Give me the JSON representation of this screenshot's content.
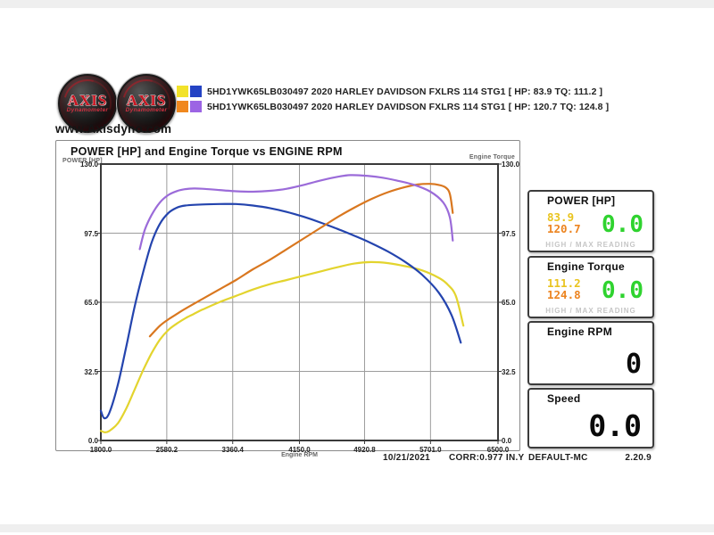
{
  "header": {
    "logo": {
      "brand": "AXIS",
      "sub": "Dynamometer"
    },
    "website": "www.Axisdyno.com",
    "legend": [
      {
        "swatches": [
          "#f2e22a",
          "#2443c4"
        ],
        "label": "5HD1YWK65LB030497 2020 HARLEY DAVIDSON FXLRS 114 STG1 [ HP: 83.9 TQ: 111.2 ]"
      },
      {
        "swatches": [
          "#f0881e",
          "#9c64e4"
        ],
        "label": "5HD1YWK65LB030497 2020 HARLEY DAVIDSON FXLRS 114 STG1 [ HP: 120.7 TQ: 124.8 ]"
      }
    ]
  },
  "chart_data": {
    "type": "line",
    "title": "POWER [HP] and Engine Torque vs ENGINE RPM",
    "xlabel": "Engine RPM",
    "ylabel_left": "POWER [HP]",
    "ylabel_right": "Engine Torque",
    "xlim": [
      1800,
      6500
    ],
    "ylim": [
      0,
      130
    ],
    "x_ticks": [
      "1800.0",
      "2580.2",
      "3360.4",
      "4150.0",
      "4920.8",
      "5701.0",
      "6500.0"
    ],
    "y_ticks": [
      "130.0",
      "97.5",
      "65.0",
      "32.5",
      "0.0"
    ],
    "grid": true,
    "legend_position": "top-outside",
    "series": [
      {
        "name": "run1-power-hp",
        "color": "#e3d42e",
        "axis": "left",
        "peak": 83.9,
        "points": [
          [
            1800,
            4.5
          ],
          [
            1850,
            3.8
          ],
          [
            1900,
            4.5
          ],
          [
            2000,
            8
          ],
          [
            2100,
            15
          ],
          [
            2200,
            24
          ],
          [
            2300,
            33
          ],
          [
            2400,
            41
          ],
          [
            2500,
            47.5
          ],
          [
            2600,
            52
          ],
          [
            2700,
            55
          ],
          [
            2800,
            57.5
          ],
          [
            2900,
            59.5
          ],
          [
            3000,
            61.5
          ],
          [
            3200,
            65
          ],
          [
            3400,
            68
          ],
          [
            3600,
            71
          ],
          [
            3800,
            73.5
          ],
          [
            4000,
            75.5
          ],
          [
            4200,
            77.5
          ],
          [
            4400,
            79.5
          ],
          [
            4600,
            81.5
          ],
          [
            4800,
            83.2
          ],
          [
            5000,
            83.9
          ],
          [
            5200,
            83.4
          ],
          [
            5400,
            82
          ],
          [
            5600,
            80
          ],
          [
            5800,
            76.5
          ],
          [
            5900,
            73.5
          ],
          [
            6000,
            68
          ],
          [
            6090,
            54
          ]
        ]
      },
      {
        "name": "run1-torque",
        "color": "#2444ae",
        "axis": "right",
        "peak": 111.2,
        "points": [
          [
            1800,
            14
          ],
          [
            1840,
            10.5
          ],
          [
            1900,
            13
          ],
          [
            2000,
            26
          ],
          [
            2100,
            44
          ],
          [
            2200,
            63
          ],
          [
            2300,
            79
          ],
          [
            2400,
            93
          ],
          [
            2500,
            102
          ],
          [
            2600,
            107
          ],
          [
            2700,
            109.5
          ],
          [
            2800,
            110.5
          ],
          [
            3000,
            111
          ],
          [
            3200,
            111.2
          ],
          [
            3400,
            111.2
          ],
          [
            3600,
            110.5
          ],
          [
            3800,
            109.3
          ],
          [
            4000,
            107.5
          ],
          [
            4200,
            105.2
          ],
          [
            4400,
            102.5
          ],
          [
            4600,
            99.5
          ],
          [
            4800,
            96.3
          ],
          [
            5000,
            92.8
          ],
          [
            5200,
            88.8
          ],
          [
            5400,
            84
          ],
          [
            5600,
            78
          ],
          [
            5800,
            69.5
          ],
          [
            5950,
            59
          ],
          [
            6060,
            46
          ]
        ]
      },
      {
        "name": "run2-power-hp",
        "color": "#d9771f",
        "axis": "left",
        "peak": 120.7,
        "points": [
          [
            2380,
            49
          ],
          [
            2500,
            54
          ],
          [
            2600,
            57
          ],
          [
            2700,
            59.5
          ],
          [
            2800,
            62
          ],
          [
            3000,
            66.5
          ],
          [
            3200,
            71
          ],
          [
            3400,
            75.5
          ],
          [
            3600,
            80.5
          ],
          [
            3800,
            85
          ],
          [
            4000,
            90
          ],
          [
            4200,
            95
          ],
          [
            4400,
            100
          ],
          [
            4600,
            105
          ],
          [
            4800,
            109.5
          ],
          [
            5000,
            113.5
          ],
          [
            5200,
            116.8
          ],
          [
            5400,
            119.2
          ],
          [
            5550,
            120.4
          ],
          [
            5700,
            120.7
          ],
          [
            5800,
            120.2
          ],
          [
            5880,
            119
          ],
          [
            5930,
            116
          ],
          [
            5965,
            107
          ]
        ]
      },
      {
        "name": "run2-torque",
        "color": "#9b6bd9",
        "axis": "right",
        "peak": 124.8,
        "points": [
          [
            2260,
            90
          ],
          [
            2320,
            99
          ],
          [
            2400,
            106
          ],
          [
            2500,
            112
          ],
          [
            2600,
            115.5
          ],
          [
            2700,
            117.3
          ],
          [
            2800,
            118.2
          ],
          [
            2900,
            118.5
          ],
          [
            3000,
            118.4
          ],
          [
            3200,
            117.8
          ],
          [
            3400,
            117.2
          ],
          [
            3600,
            117
          ],
          [
            3800,
            117.4
          ],
          [
            4000,
            118.4
          ],
          [
            4200,
            120.2
          ],
          [
            4400,
            122.3
          ],
          [
            4600,
            124
          ],
          [
            4750,
            124.8
          ],
          [
            4900,
            124.6
          ],
          [
            5100,
            123.8
          ],
          [
            5300,
            122.3
          ],
          [
            5500,
            120.3
          ],
          [
            5700,
            117
          ],
          [
            5850,
            112
          ],
          [
            5930,
            105
          ],
          [
            5965,
            94
          ]
        ]
      }
    ]
  },
  "chart_footer": {
    "date": "10/21/2021",
    "correction": "CORR:0.977 IN.Y"
  },
  "gauges": [
    {
      "title": "POWER [HP]",
      "run1_max": "83.9",
      "run2_max": "120.7",
      "live": "0.0",
      "footer": "HIGH / MAX READING"
    },
    {
      "title": "Engine Torque",
      "run1_max": "111.2",
      "run2_max": "124.8",
      "live": "0.0",
      "footer": "HIGH / MAX READING"
    },
    {
      "title": "Engine RPM",
      "live": "0"
    },
    {
      "title": "Speed",
      "live": "0.0"
    }
  ],
  "statusbar": {
    "profile": "DEFAULT-MC",
    "version": "2.20.9"
  },
  "colors": {
    "live_green": "#2fd32f",
    "max_yellow": "#e9c41f",
    "max_orange": "#ec8420",
    "grid": "#9c9c9c",
    "plot_border": "#3a3a3a"
  }
}
